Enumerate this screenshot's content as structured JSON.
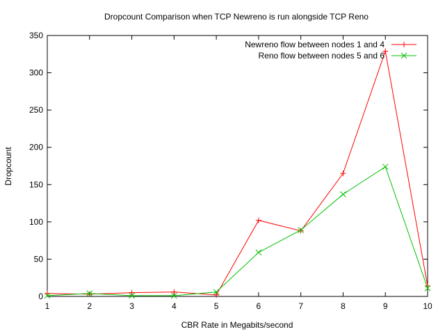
{
  "chart_data": {
    "type": "line",
    "title": "Dropcount Comparison when TCP Newreno is run alongside TCP Reno",
    "xlabel": "CBR Rate in Megabits/second",
    "ylabel": "Dropcount",
    "xlim": [
      1,
      10
    ],
    "ylim": [
      0,
      350
    ],
    "x_ticks": [
      1,
      2,
      3,
      4,
      5,
      6,
      7,
      8,
      9,
      10
    ],
    "y_ticks": [
      0,
      50,
      100,
      150,
      200,
      250,
      300,
      350
    ],
    "grid": false,
    "legend_position": "top-right",
    "x": [
      1,
      2,
      3,
      4,
      5,
      6,
      7,
      8,
      9,
      10
    ],
    "series": [
      {
        "name": "Newreno flow between nodes 1 and 4",
        "color": "#ff0000",
        "marker": "plus",
        "values": [
          4,
          3,
          5,
          6,
          2,
          102,
          88,
          165,
          329,
          14
        ]
      },
      {
        "name": "Reno flow between nodes 5 and 6",
        "color": "#00c000",
        "marker": "cross",
        "values": [
          1,
          4,
          1,
          1,
          6,
          59,
          89,
          137,
          174,
          11
        ]
      }
    ]
  }
}
